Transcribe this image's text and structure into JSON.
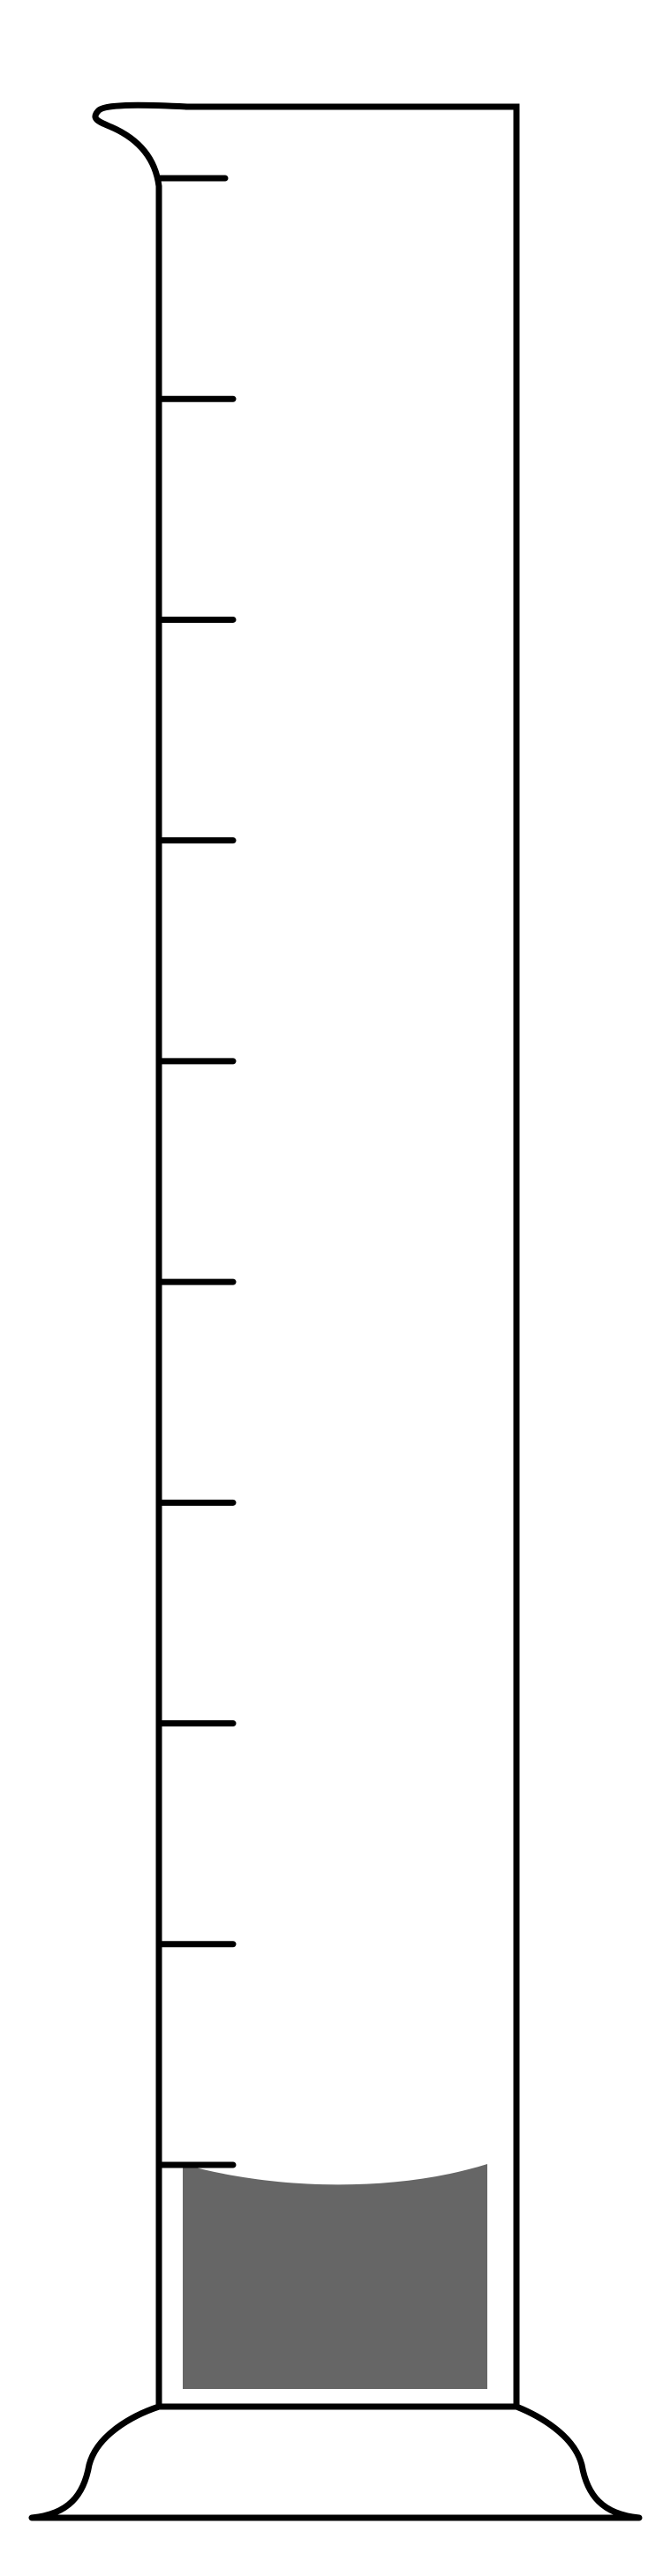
{
  "cylinder": {
    "graduation_count": 10,
    "liquid_level_graduation": 1,
    "colors": {
      "outline": "#000000",
      "liquid": "#666666",
      "background": "#ffffff"
    }
  }
}
